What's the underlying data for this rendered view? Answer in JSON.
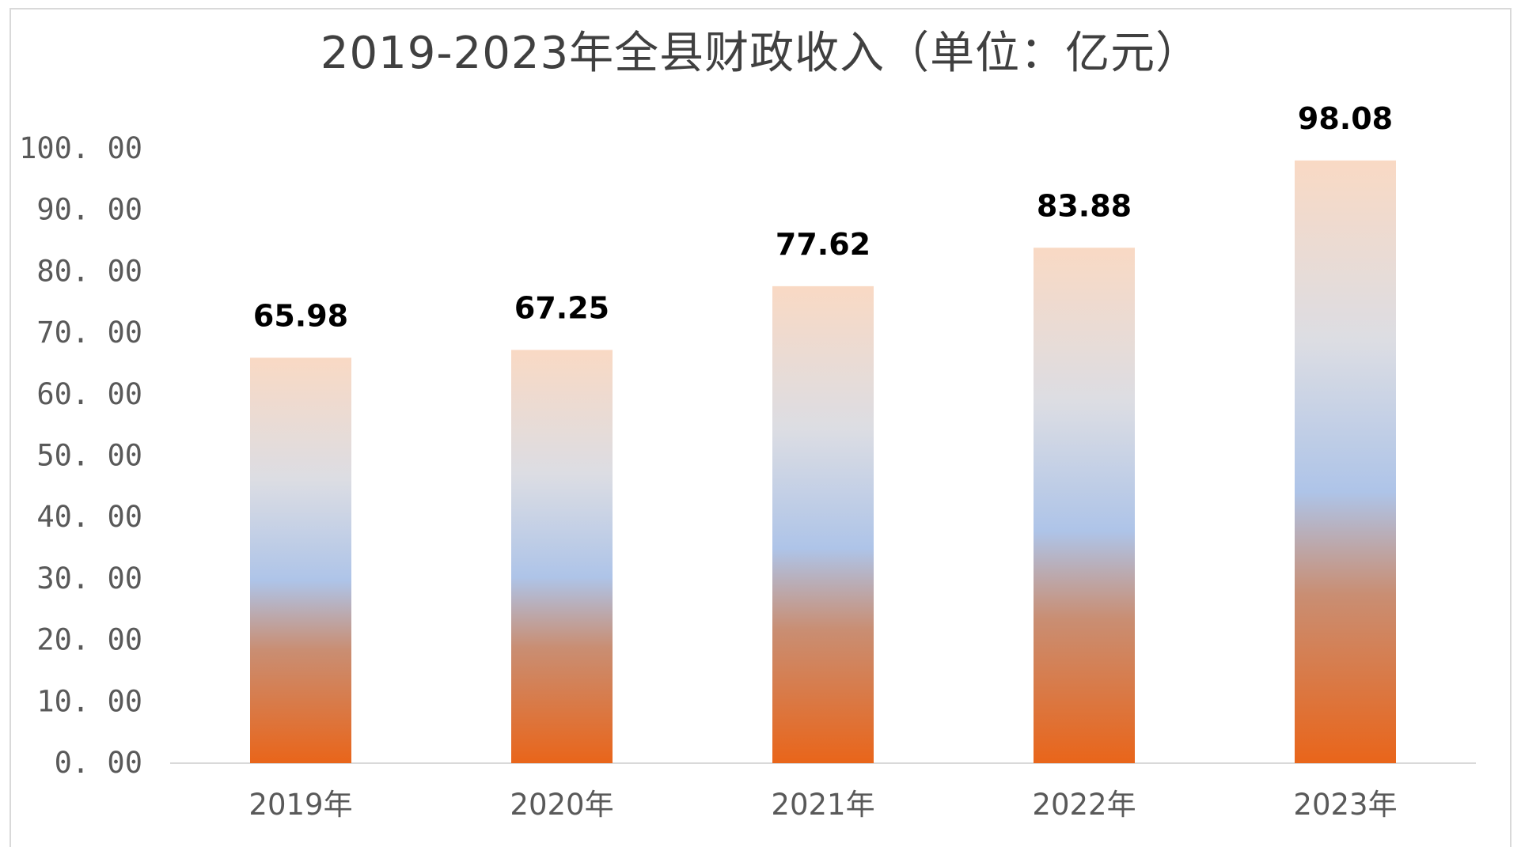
{
  "chart_data": {
    "type": "bar",
    "title": "2019-2023年全县财政收入（单位：亿元）",
    "xlabel": "",
    "ylabel": "",
    "categories": [
      "2019年",
      "2020年",
      "2021年",
      "2022年",
      "2023年"
    ],
    "values": [
      65.98,
      67.25,
      77.62,
      83.88,
      98.08
    ],
    "data_labels": [
      "65.98",
      "67.25",
      "77.62",
      "83.88",
      "98.08"
    ],
    "ylim": [
      0,
      100
    ],
    "yticks": [
      0,
      10,
      20,
      30,
      40,
      50,
      60,
      70,
      80,
      90,
      100
    ],
    "ytick_labels": [
      "0. 00",
      "10. 00",
      "20. 00",
      "30. 00",
      "40. 00",
      "50. 00",
      "60. 00",
      "70. 00",
      "80. 00",
      "90. 00",
      "100. 00"
    ],
    "grid": false,
    "legend": "none",
    "bar_gradient": [
      "#f9d9c4",
      "#dcdde3",
      "#aec4e8",
      "#c98e73",
      "#e9651a"
    ],
    "axis_color": "#d9d9d9"
  }
}
